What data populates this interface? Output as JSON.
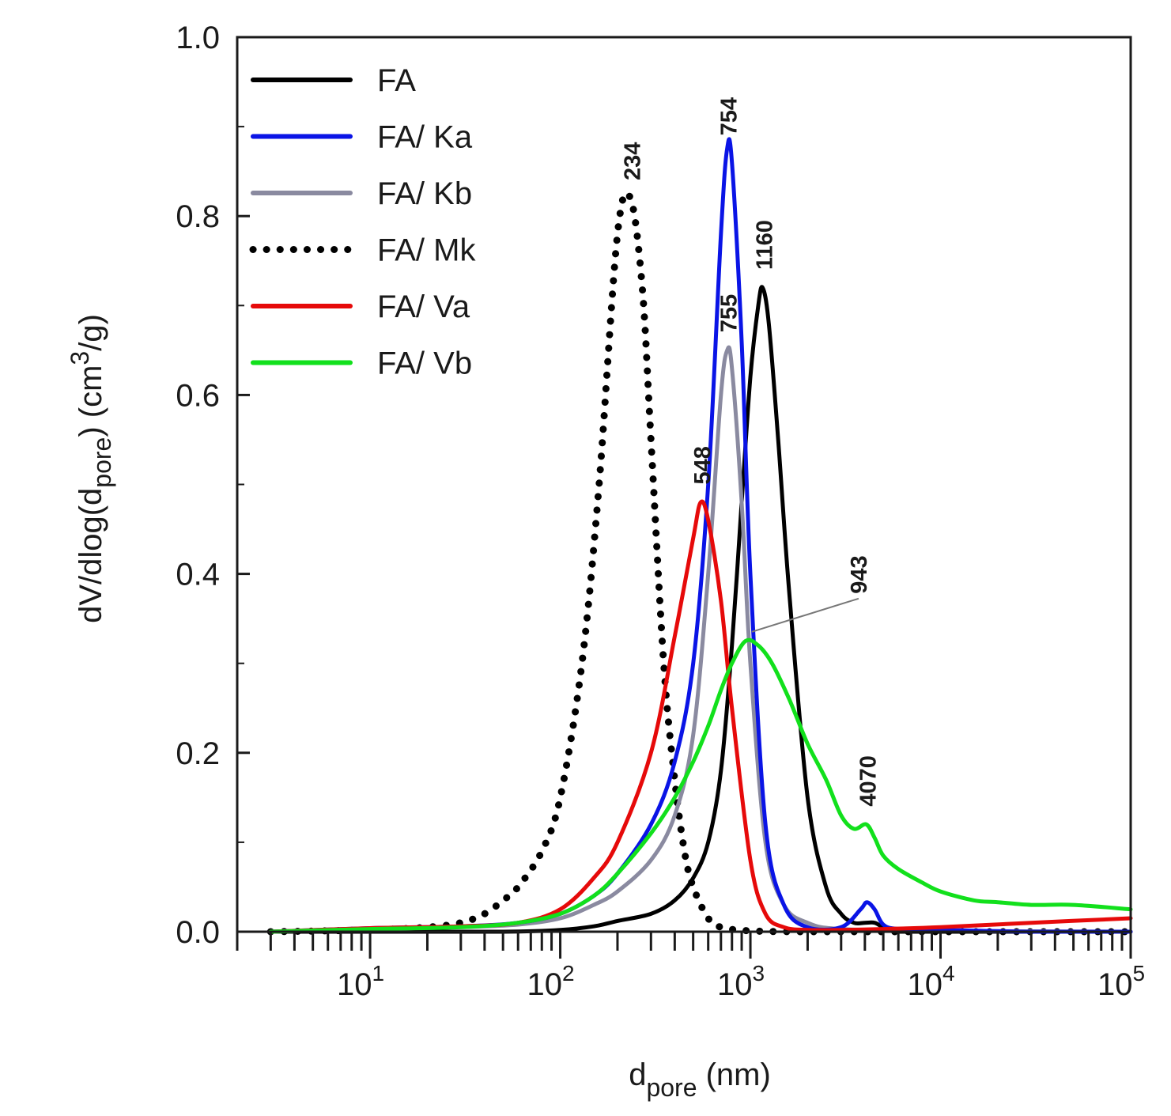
{
  "chart_data": {
    "type": "line",
    "title": "",
    "xlabel": {
      "main": "d",
      "sub": "pore",
      "unit": " (nm)"
    },
    "ylabel": {
      "pre": "dV/dlog(d",
      "sub": "pore",
      "mid": ") (cm",
      "sup": "3",
      "post": "/g)"
    },
    "xscale": "log",
    "xlim": [
      2,
      100000
    ],
    "ylim": [
      0,
      1.0
    ],
    "yticks": [
      "0.0",
      "0.2",
      "0.4",
      "0.6",
      "0.8",
      "1.0"
    ],
    "xticks": [
      {
        "base": "10",
        "exp": "1",
        "value": 10
      },
      {
        "base": "10",
        "exp": "2",
        "value": 100
      },
      {
        "base": "10",
        "exp": "3",
        "value": 1000
      },
      {
        "base": "10",
        "exp": "4",
        "value": 10000
      },
      {
        "base": "10",
        "exp": "5",
        "value": 100000
      }
    ],
    "legend_position": "top-left",
    "series": [
      {
        "name": "FA",
        "color": "#000000",
        "style": "solid",
        "x": [
          3,
          10,
          50,
          100,
          150,
          200,
          300,
          400,
          500,
          600,
          700,
          800,
          900,
          1000,
          1100,
          1160,
          1250,
          1400,
          1600,
          2000,
          2500,
          3000,
          3500,
          4000,
          4500,
          5000,
          6000,
          10000,
          30000,
          100000
        ],
        "y": [
          0.0,
          0.0,
          0.0,
          0.002,
          0.006,
          0.012,
          0.02,
          0.035,
          0.06,
          0.1,
          0.18,
          0.32,
          0.48,
          0.62,
          0.7,
          0.72,
          0.68,
          0.55,
          0.38,
          0.15,
          0.05,
          0.02,
          0.01,
          0.01,
          0.01,
          0.005,
          0.0,
          0.0,
          0.0,
          0.0
        ]
      },
      {
        "name": "FA/ Ka",
        "color": "#0a14e6",
        "style": "solid",
        "x": [
          3,
          10,
          30,
          60,
          100,
          150,
          200,
          300,
          400,
          500,
          600,
          700,
          754,
          800,
          900,
          1000,
          1200,
          1500,
          2000,
          3000,
          3800,
          4100,
          4500,
          5000,
          6000,
          10000,
          30000,
          100000
        ],
        "y": [
          0.0,
          0.004,
          0.006,
          0.01,
          0.02,
          0.04,
          0.065,
          0.12,
          0.19,
          0.3,
          0.5,
          0.78,
          0.875,
          0.86,
          0.66,
          0.4,
          0.12,
          0.03,
          0.005,
          0.005,
          0.025,
          0.033,
          0.025,
          0.008,
          0.003,
          0.002,
          0.0,
          0.0
        ]
      },
      {
        "name": "FA/ Kb",
        "color": "#8a8aa0",
        "style": "solid",
        "x": [
          3,
          10,
          30,
          60,
          100,
          150,
          200,
          300,
          400,
          500,
          600,
          700,
          755,
          800,
          900,
          1000,
          1200,
          1500,
          2000,
          3000,
          10000,
          100000
        ],
        "y": [
          0.0,
          0.003,
          0.005,
          0.008,
          0.015,
          0.03,
          0.045,
          0.08,
          0.13,
          0.22,
          0.4,
          0.6,
          0.65,
          0.63,
          0.48,
          0.3,
          0.1,
          0.03,
          0.01,
          0.003,
          0.001,
          0.0
        ]
      },
      {
        "name": "FA/ Mk",
        "color": "#000000",
        "style": "dotted",
        "x": [
          3,
          10,
          20,
          30,
          40,
          50,
          60,
          80,
          100,
          130,
          160,
          200,
          234,
          270,
          300,
          350,
          400,
          450,
          500,
          600,
          700,
          1000,
          2000,
          10000,
          100000
        ],
        "y": [
          0.0,
          0.002,
          0.005,
          0.01,
          0.02,
          0.035,
          0.05,
          0.09,
          0.15,
          0.3,
          0.5,
          0.78,
          0.82,
          0.72,
          0.55,
          0.3,
          0.17,
          0.09,
          0.05,
          0.015,
          0.005,
          0.001,
          0.0,
          0.0,
          0.0
        ]
      },
      {
        "name": "FA/ Va",
        "color": "#e60a0a",
        "style": "solid",
        "x": [
          3,
          10,
          30,
          60,
          100,
          150,
          200,
          300,
          400,
          500,
          548,
          600,
          700,
          800,
          1000,
          1200,
          1500,
          2000,
          3000,
          5000,
          10000,
          30000,
          100000
        ],
        "y": [
          0.0,
          0.004,
          0.006,
          0.01,
          0.025,
          0.06,
          0.1,
          0.2,
          0.33,
          0.44,
          0.48,
          0.46,
          0.37,
          0.25,
          0.08,
          0.02,
          0.005,
          0.002,
          0.002,
          0.003,
          0.005,
          0.01,
          0.015
        ]
      },
      {
        "name": "FA/ Vb",
        "color": "#12e01c",
        "style": "solid",
        "x": [
          3,
          10,
          30,
          60,
          100,
          150,
          200,
          300,
          400,
          500,
          600,
          700,
          800,
          943,
          1100,
          1300,
          1600,
          2000,
          2500,
          3000,
          3500,
          4070,
          4500,
          5000,
          6000,
          8000,
          10000,
          15000,
          20000,
          30000,
          50000,
          100000
        ],
        "y": [
          0.0,
          0.003,
          0.005,
          0.01,
          0.02,
          0.04,
          0.065,
          0.11,
          0.15,
          0.19,
          0.23,
          0.27,
          0.3,
          0.325,
          0.32,
          0.3,
          0.26,
          0.21,
          0.17,
          0.13,
          0.115,
          0.12,
          0.105,
          0.085,
          0.07,
          0.055,
          0.045,
          0.035,
          0.033,
          0.03,
          0.03,
          0.025
        ]
      }
    ],
    "annotations": [
      {
        "text": "234",
        "x": 234,
        "y": 0.84
      },
      {
        "text": "754",
        "x": 754,
        "y": 0.89
      },
      {
        "text": "1160",
        "x": 1160,
        "y": 0.74
      },
      {
        "text": "755",
        "x": 755,
        "y": 0.67
      },
      {
        "text": "548",
        "x": 548,
        "y": 0.5
      },
      {
        "text": "943",
        "x": 943,
        "y": 0.33,
        "leader": true
      },
      {
        "text": "4070",
        "x": 4070,
        "y": 0.14
      }
    ]
  }
}
